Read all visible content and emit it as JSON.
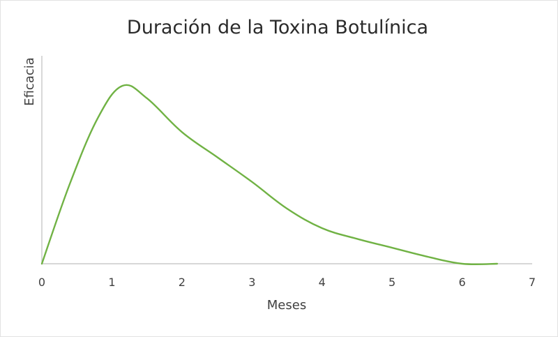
{
  "chart_data": {
    "type": "line",
    "title": "Duración de la Toxina Botulínica",
    "xlabel": "Meses",
    "ylabel": "Eficacia",
    "xlim": [
      0,
      7
    ],
    "ylim": [
      0,
      1
    ],
    "x_ticks": [
      "0",
      "1",
      "2",
      "3",
      "4",
      "5",
      "6",
      "7"
    ],
    "y_ticks_shown": false,
    "grid": false,
    "legend": "none",
    "series": [
      {
        "color": "#70b244",
        "points": [
          {
            "x": 0,
            "y": 0
          },
          {
            "x": 0.4,
            "y": 0.45
          },
          {
            "x": 0.8,
            "y": 0.82
          },
          {
            "x": 1.15,
            "y": 1.0
          },
          {
            "x": 1.5,
            "y": 0.93
          },
          {
            "x": 2.0,
            "y": 0.74
          },
          {
            "x": 2.5,
            "y": 0.6
          },
          {
            "x": 3.0,
            "y": 0.46
          },
          {
            "x": 3.5,
            "y": 0.31
          },
          {
            "x": 4.0,
            "y": 0.2
          },
          {
            "x": 4.5,
            "y": 0.14
          },
          {
            "x": 5.0,
            "y": 0.09
          },
          {
            "x": 5.5,
            "y": 0.04
          },
          {
            "x": 6.0,
            "y": 0.0
          },
          {
            "x": 6.5,
            "y": 0.0
          }
        ]
      }
    ]
  }
}
